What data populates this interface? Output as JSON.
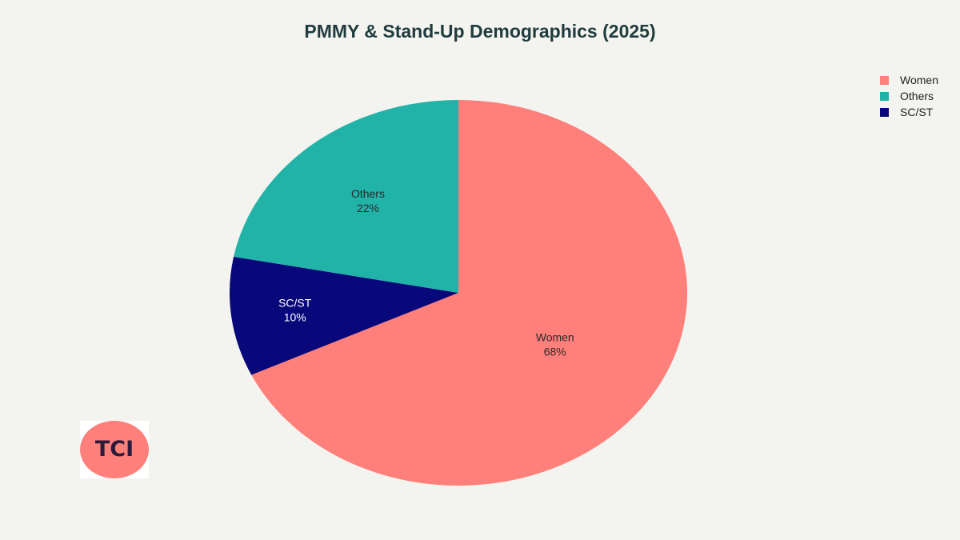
{
  "chart_data": {
    "type": "pie",
    "title": "PMMY & Stand-Up Demographics (2025)",
    "slices": [
      {
        "label": "Women",
        "value": 68,
        "display": "68%",
        "color": "#ff7f7a"
      },
      {
        "label": "SC/ST",
        "value": 10,
        "display": "10%",
        "color": "#08087a"
      },
      {
        "label": "Others",
        "value": 22,
        "display": "22%",
        "color": "#21b3a8"
      }
    ],
    "legend": {
      "placement": "top-right",
      "entries": [
        {
          "label": "Women",
          "color": "#ff7f7a"
        },
        {
          "label": "Others",
          "color": "#21b3a8"
        },
        {
          "label": "SC/ST",
          "color": "#08087a"
        }
      ]
    }
  },
  "logo": {
    "text": "TCI",
    "color": "#ff7f7a"
  }
}
